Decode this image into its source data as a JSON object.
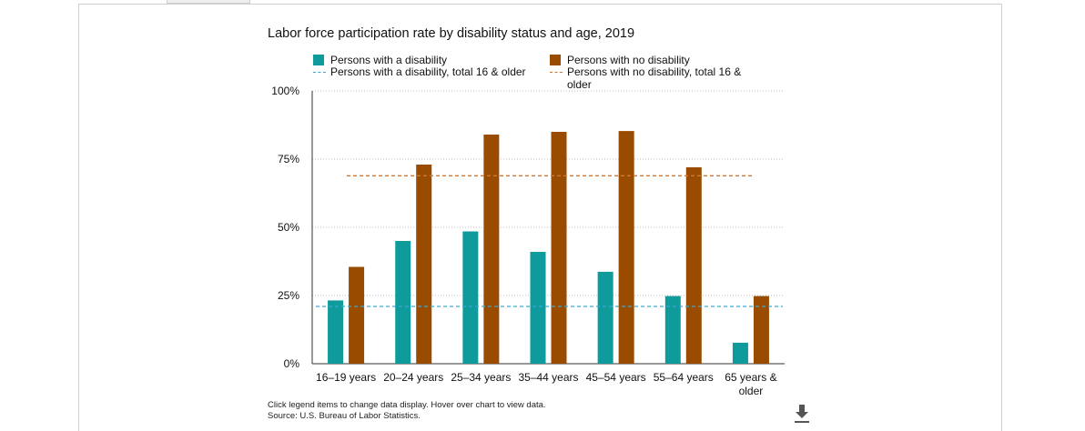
{
  "chart_data": {
    "type": "bar",
    "title": "Labor force participation rate by disability status and age, 2019",
    "categories": [
      "16–19 years",
      "20–24 years",
      "25–34 years",
      "35–44 years",
      "45–54 years",
      "55–64 years",
      [
        "65 years &",
        "older"
      ]
    ],
    "series": [
      {
        "name": "Persons with a disability",
        "color": "#0f9b9b",
        "values": [
          23.2,
          45.0,
          48.5,
          41.0,
          33.7,
          24.8,
          7.7
        ]
      },
      {
        "name": "Persons with no disability",
        "color": "#994c00",
        "values": [
          35.5,
          73.0,
          84.0,
          85.0,
          85.3,
          72.0,
          24.8
        ]
      }
    ],
    "reference_lines": [
      {
        "name": "Persons with a disability, total 16 & older",
        "color": "#3aa7d4",
        "value": 21.0
      },
      {
        "name": "Persons with no disability, total 16 & older",
        "name_lines": [
          "Persons with no disability, total 16 &",
          "older"
        ],
        "color": "#cc7733",
        "value": 68.9
      }
    ],
    "ylim": [
      0,
      100
    ],
    "yticks": [
      0,
      25,
      50,
      75,
      100
    ],
    "ytick_labels": [
      "0%",
      "25%",
      "50%",
      "75%",
      "100%"
    ],
    "xlabel": "",
    "ylabel": "",
    "grid": "horizontal dotted",
    "legend_position": "top"
  },
  "footer": {
    "note": "Click legend items to change data display. Hover over chart to view data.",
    "source": "Source: U.S. Bureau of Labor Statistics."
  },
  "icons": {
    "download": "download-icon"
  }
}
